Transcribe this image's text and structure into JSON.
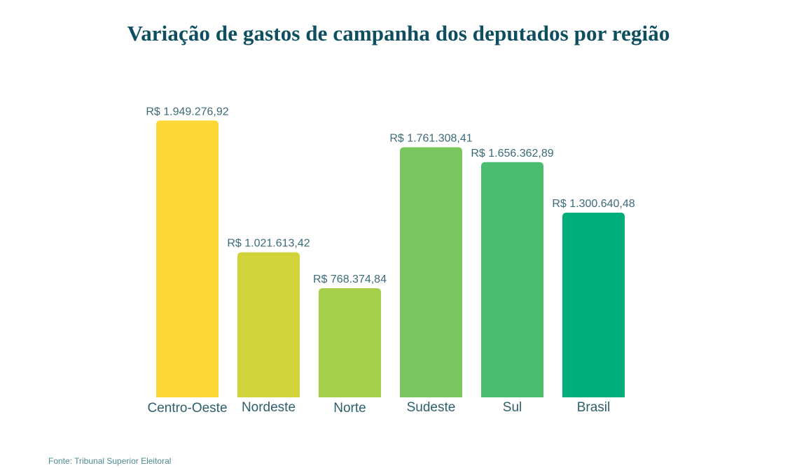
{
  "title": "Variação de gastos de campanha dos deputados por região",
  "source": "Fonte: Tribunal Superior Eleitoral",
  "chart_data": {
    "type": "bar",
    "title": "Variação de gastos de campanha dos deputados por região",
    "xlabel": "",
    "ylabel": "",
    "ylim": [
      0,
      2000000
    ],
    "grid": false,
    "legend": "none",
    "categories": [
      "Centro-Oeste",
      "Nordeste",
      "Norte",
      "Sudeste",
      "Sul",
      "Brasil"
    ],
    "values": [
      1949276.92,
      1021613.42,
      768374.84,
      1761308.41,
      1656362.89,
      1300640.48
    ],
    "value_labels": [
      "R$ 1.949.276,92",
      "R$ 1.021.613,42",
      "R$ 768.374,84",
      "R$ 1.761.308,41",
      "R$ 1.656.362,89",
      "R$ 1.300.640,48"
    ],
    "colors": [
      "#FDD835",
      "#D0D43A",
      "#A5CF4A",
      "#7AC65E",
      "#4BBD6F",
      "#00AE7C"
    ],
    "source": "Fonte: Tribunal Superior Eleitoral"
  }
}
